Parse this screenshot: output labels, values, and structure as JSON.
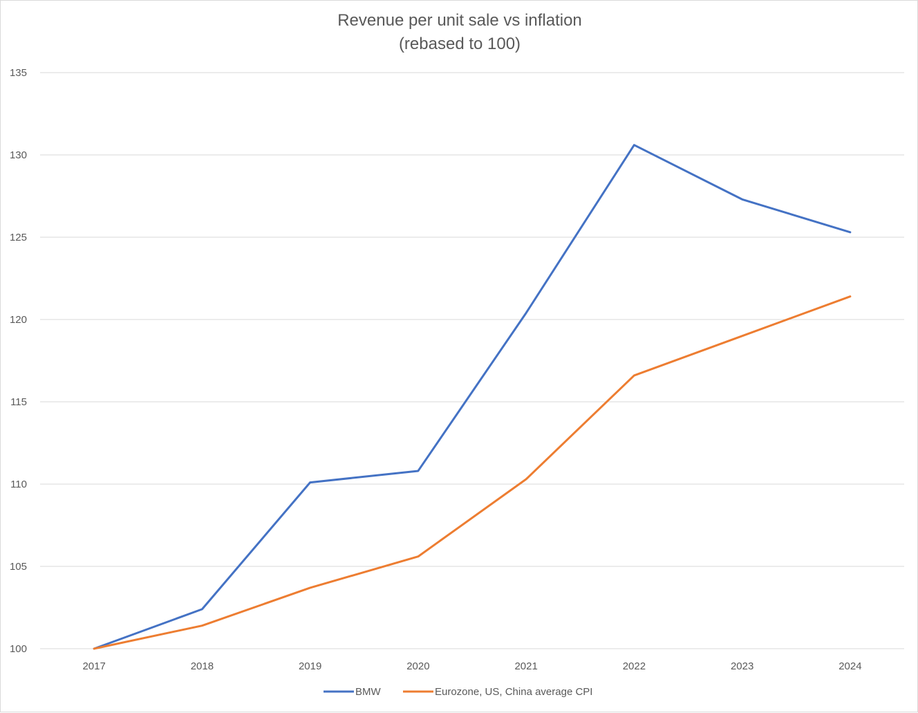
{
  "chart_data": {
    "type": "line",
    "title": "Revenue per unit sale vs inflation",
    "subtitle": "(rebased to 100)",
    "xlabel": "",
    "ylabel": "",
    "categories": [
      "2017",
      "2018",
      "2019",
      "2020",
      "2021",
      "2022",
      "2023",
      "2024"
    ],
    "ylim": [
      100,
      135
    ],
    "yticks": [
      100,
      105,
      110,
      115,
      120,
      125,
      130,
      135
    ],
    "grid": true,
    "legend_position": "bottom",
    "series": [
      {
        "name": "BMW",
        "color": "#4472C4",
        "values": [
          100,
          102.4,
          110.1,
          110.8,
          120.4,
          130.6,
          127.3,
          125.3
        ]
      },
      {
        "name": "Eurozone, US, China average CPI",
        "color": "#ED7D31",
        "values": [
          100,
          101.4,
          103.7,
          105.6,
          110.3,
          116.6,
          119.0,
          121.4
        ]
      }
    ]
  }
}
